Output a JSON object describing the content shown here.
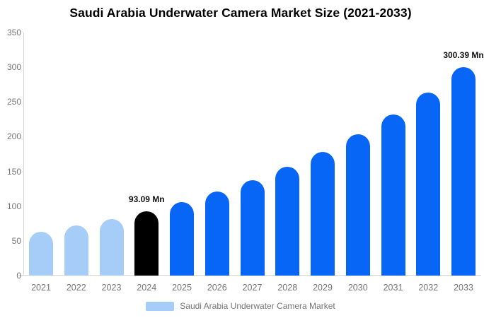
{
  "chart_data": {
    "type": "bar",
    "title": "Saudi Arabia Underwater Camera Market Size (2021-2033)",
    "xlabel": "",
    "ylabel": "",
    "unit": "Mn",
    "categories": [
      "2021",
      "2022",
      "2023",
      "2024",
      "2025",
      "2026",
      "2027",
      "2028",
      "2029",
      "2030",
      "2031",
      "2032",
      "2033"
    ],
    "values": [
      63.0,
      71.8,
      81.7,
      93.09,
      106.0,
      120.8,
      137.6,
      156.7,
      178.5,
      203.3,
      231.6,
      263.8,
      300.39
    ],
    "bar_styles": [
      "historical",
      "historical",
      "historical",
      "highlight",
      "forecast",
      "forecast",
      "forecast",
      "forecast",
      "forecast",
      "forecast",
      "forecast",
      "forecast",
      "forecast"
    ],
    "annotations": [
      {
        "category": "2024",
        "text": "93.09 Mn"
      },
      {
        "category": "2033",
        "text": "300.39 Mn"
      }
    ],
    "ylim": [
      0,
      350
    ],
    "y_ticks": [
      0,
      50,
      100,
      150,
      200,
      250,
      300,
      350
    ],
    "grid": false,
    "legend_position": "bottom"
  },
  "colors": {
    "historical": "#a5cdf8",
    "highlight": "#000000",
    "forecast": "#0866f7",
    "axis_line": "#d7d7d7",
    "tick_text": "#757575",
    "annotation_text": "#111111"
  },
  "legend": {
    "label": "Saudi Arabia Underwater Camera Market",
    "swatch_color": "#a5cdf8"
  }
}
